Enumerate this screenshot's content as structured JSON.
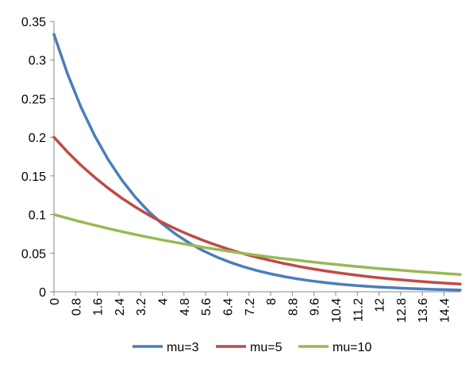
{
  "chart_data": {
    "type": "line",
    "title": "",
    "xlabel": "",
    "ylabel": "",
    "ylim": [
      0,
      0.35
    ],
    "xlim": [
      0,
      15
    ],
    "grid": false,
    "legend_position": "bottom",
    "y_ticks": [
      {
        "value": 0,
        "label": "0"
      },
      {
        "value": 0.05,
        "label": "0.05"
      },
      {
        "value": 0.1,
        "label": "0.1"
      },
      {
        "value": 0.15,
        "label": "0.15"
      },
      {
        "value": 0.2,
        "label": "0.2"
      },
      {
        "value": 0.25,
        "label": "0.25"
      },
      {
        "value": 0.3,
        "label": "0.3"
      },
      {
        "value": 0.35,
        "label": "0.35"
      }
    ],
    "x_ticks": [
      {
        "value": 0,
        "label": "0"
      },
      {
        "value": 0.8,
        "label": "0.8"
      },
      {
        "value": 1.6,
        "label": "1.6"
      },
      {
        "value": 2.4,
        "label": "2.4"
      },
      {
        "value": 3.2,
        "label": "3.2"
      },
      {
        "value": 4,
        "label": "4"
      },
      {
        "value": 4.8,
        "label": "4.8"
      },
      {
        "value": 5.6,
        "label": "5.6"
      },
      {
        "value": 6.4,
        "label": "6.4"
      },
      {
        "value": 7.2,
        "label": "7.2"
      },
      {
        "value": 8,
        "label": "8"
      },
      {
        "value": 8.8,
        "label": "8.8"
      },
      {
        "value": 9.6,
        "label": "9.6"
      },
      {
        "value": 10.4,
        "label": "10.4"
      },
      {
        "value": 11.2,
        "label": "11.2"
      },
      {
        "value": 12,
        "label": "12"
      },
      {
        "value": 12.8,
        "label": "12.8"
      },
      {
        "value": 13.6,
        "label": "13.6"
      },
      {
        "value": 14.4,
        "label": "14.4"
      }
    ],
    "x": [
      0,
      0.5,
      1,
      1.5,
      2,
      2.5,
      3,
      3.5,
      4,
      4.5,
      5,
      5.5,
      6,
      6.5,
      7,
      7.5,
      8,
      8.5,
      9,
      9.5,
      10,
      10.5,
      11,
      11.5,
      12,
      12.5,
      13,
      13.5,
      14,
      14.5,
      15
    ],
    "series": [
      {
        "name": "mu=3",
        "color": "#4a7ebb",
        "values": [
          0.3333,
          0.2821,
          0.2388,
          0.2022,
          0.1711,
          0.1449,
          0.1226,
          0.1038,
          0.0879,
          0.0744,
          0.063,
          0.0533,
          0.0451,
          0.0382,
          0.0323,
          0.0274,
          0.0232,
          0.0196,
          0.0166,
          0.0141,
          0.0119,
          0.0101,
          0.0085,
          0.0072,
          0.0061,
          0.0052,
          0.0044,
          0.0037,
          0.0031,
          0.0027,
          0.0022
        ]
      },
      {
        "name": "mu=5",
        "color": "#be4b48",
        "values": [
          0.2,
          0.181,
          0.1637,
          0.1482,
          0.1341,
          0.1213,
          0.1098,
          0.0993,
          0.0899,
          0.0813,
          0.0736,
          0.0666,
          0.0602,
          0.0545,
          0.0493,
          0.0446,
          0.0404,
          0.0365,
          0.0331,
          0.0299,
          0.0271,
          0.0245,
          0.0222,
          0.02,
          0.0181,
          0.0164,
          0.0149,
          0.0134,
          0.0122,
          0.011,
          0.01
        ]
      },
      {
        "name": "mu=10",
        "color": "#98b954",
        "values": [
          0.1,
          0.0951,
          0.0905,
          0.0861,
          0.0819,
          0.0779,
          0.0741,
          0.0705,
          0.067,
          0.0638,
          0.0607,
          0.0577,
          0.0549,
          0.0522,
          0.0497,
          0.0472,
          0.0449,
          0.0427,
          0.0407,
          0.0387,
          0.0368,
          0.035,
          0.0333,
          0.0317,
          0.0301,
          0.0287,
          0.0273,
          0.0259,
          0.0247,
          0.0235,
          0.0223
        ]
      }
    ]
  }
}
